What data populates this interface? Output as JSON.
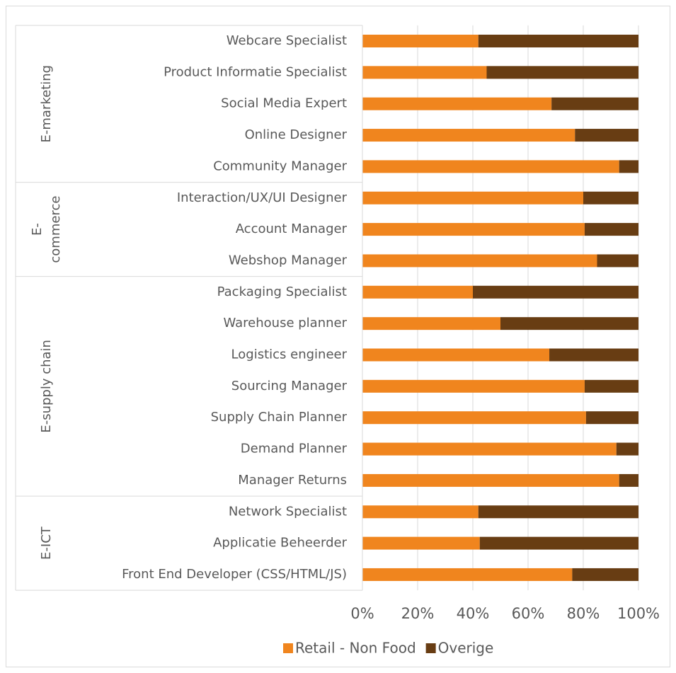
{
  "chart_data": {
    "type": "stacked_bar_horizontal",
    "groups": [
      {
        "label": [
          "E-marketing"
        ],
        "categories": [
          "Webcare Specialist",
          "Product Informatie Specialist",
          "Social Media Expert",
          "Online Designer",
          "Community Manager"
        ]
      },
      {
        "label": [
          "E-",
          "commerce"
        ],
        "categories": [
          "Interaction/UX/UI Designer",
          "Account Manager",
          "Webshop Manager"
        ]
      },
      {
        "label": [
          "E-supply chain"
        ],
        "categories": [
          "Packaging Specialist",
          "Warehouse planner",
          "Logistics engineer",
          "Sourcing Manager",
          "Supply Chain Planner",
          "Demand Planner",
          "Manager Returns"
        ]
      },
      {
        "label": [
          "E-ICT"
        ],
        "categories": [
          "Network Specialist",
          "Applicatie Beheerder",
          "Front End Developer (CSS/HTML/JS)"
        ]
      }
    ],
    "series": [
      {
        "name": "Retail - Non Food",
        "color": "#f0851e",
        "values": [
          42,
          45,
          68.5,
          77,
          93,
          80,
          80.5,
          85,
          40,
          50,
          67.7,
          80.5,
          81,
          92,
          93,
          42,
          42.5,
          76
        ]
      },
      {
        "name": "Overige",
        "color": "#683d13",
        "values": [
          58,
          55,
          31.5,
          23,
          7,
          20,
          19.5,
          15,
          60,
          50,
          32.3,
          19.5,
          19,
          8,
          7,
          58,
          57.5,
          24
        ]
      }
    ],
    "xlim": [
      0,
      100
    ],
    "xticks": [
      {
        "value": 0,
        "label": "0%"
      },
      {
        "value": 20,
        "label": "20%"
      },
      {
        "value": 40,
        "label": "40%"
      },
      {
        "value": 60,
        "label": "60%"
      },
      {
        "value": 80,
        "label": "80%"
      },
      {
        "value": 100,
        "label": "100%"
      }
    ],
    "grid": true,
    "legend": "bottom"
  }
}
